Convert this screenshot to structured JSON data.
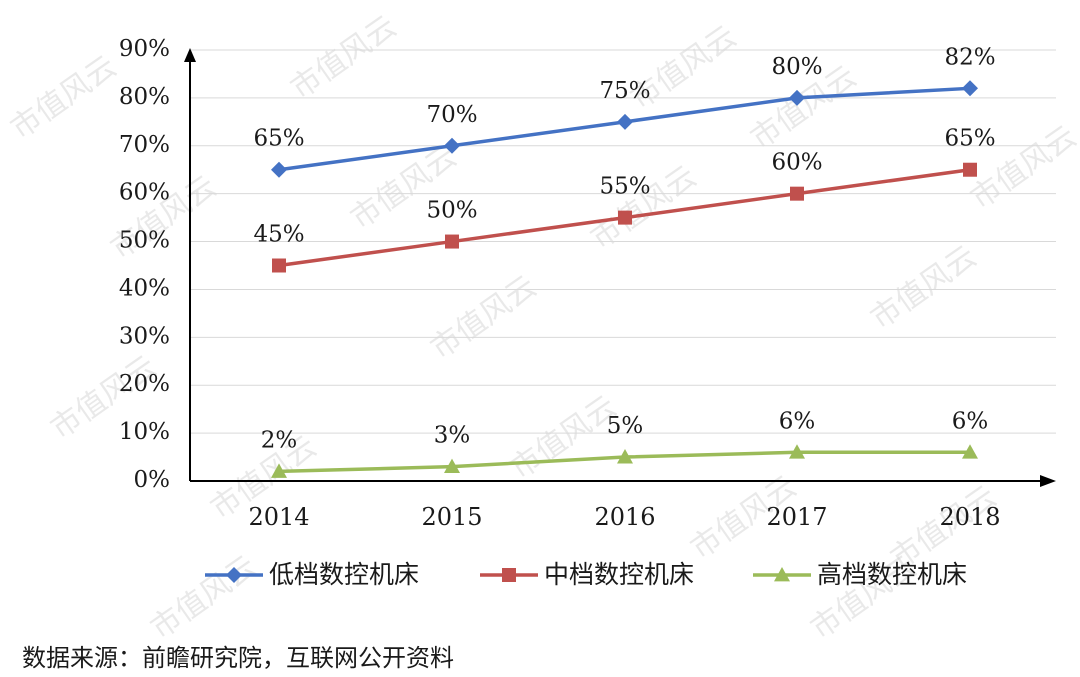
{
  "watermark": "市值风云",
  "source": "数据来源：前瞻研究院，互联网公开资料",
  "chart_data": {
    "type": "line",
    "title": "",
    "xlabel": "",
    "ylabel": "",
    "categories": [
      "2014",
      "2015",
      "2016",
      "2017",
      "2018"
    ],
    "ylim": [
      0,
      90
    ],
    "yticks": [
      "0%",
      "10%",
      "20%",
      "30%",
      "40%",
      "50%",
      "60%",
      "70%",
      "80%",
      "90%"
    ],
    "grid": true,
    "legend_position": "bottom",
    "series": [
      {
        "name": "低档数控机床",
        "values": [
          65,
          70,
          75,
          80,
          82
        ],
        "labels": [
          "65%",
          "70%",
          "75%",
          "80%",
          "82%"
        ],
        "color": "#4472c4",
        "marker": "diamond"
      },
      {
        "name": "中档数控机床",
        "values": [
          45,
          50,
          55,
          60,
          65
        ],
        "labels": [
          "45%",
          "50%",
          "55%",
          "60%",
          "65%"
        ],
        "color": "#c0504d",
        "marker": "square"
      },
      {
        "name": "高档数控机床",
        "values": [
          2,
          3,
          5,
          6,
          6
        ],
        "labels": [
          "2%",
          "3%",
          "5%",
          "6%",
          "6%"
        ],
        "color": "#9bbb59",
        "marker": "triangle"
      }
    ]
  }
}
